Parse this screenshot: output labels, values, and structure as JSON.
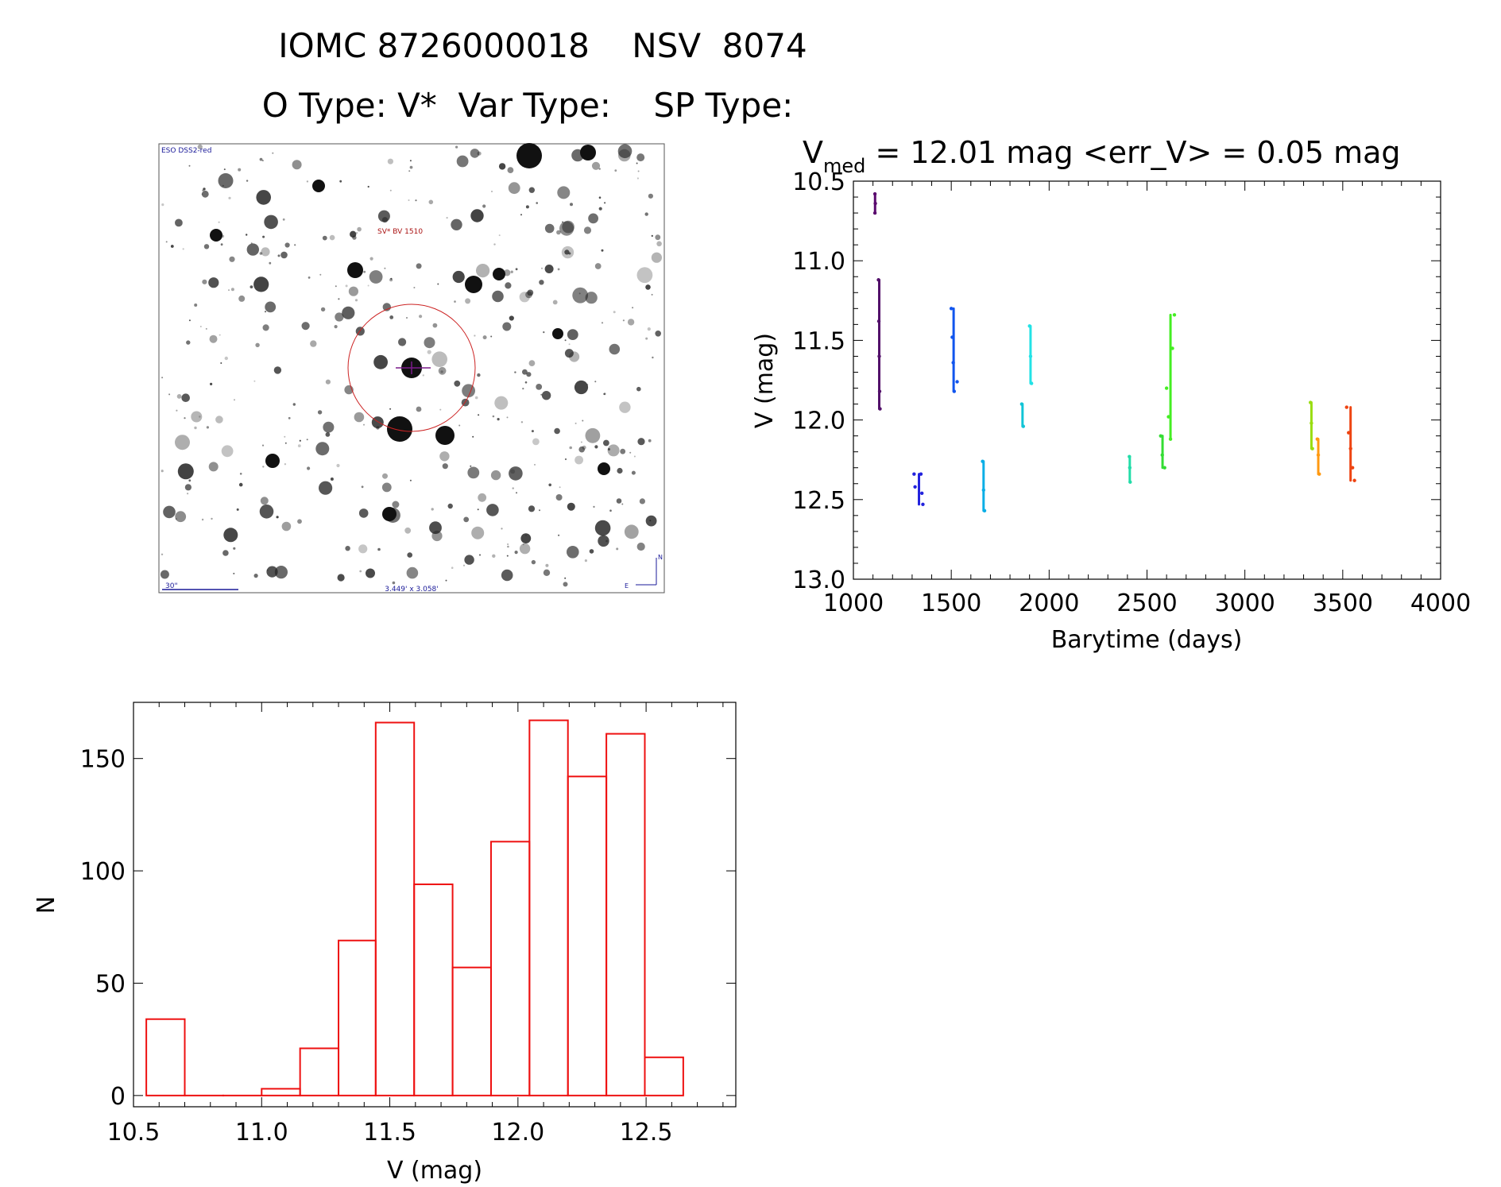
{
  "header": {
    "title": "IOMC 8726000018    NSV  8074",
    "subtitle": "O Type: V*  Var Type:    SP Type:"
  },
  "finder_image": {
    "survey_label": "ESO DSS2-red",
    "object_label": "SV* BV 1510",
    "scale_label": "30\"",
    "field_label": "3.449' x 3.058'",
    "north_label": "N",
    "east_label": "E"
  },
  "colors": {
    "histogram_bar": "#ee1111",
    "finder_circle": "#cc2222",
    "finder_cross": "#7a1a8a",
    "finder_text": "#1a1a99",
    "finder_object_text": "#aa1111"
  },
  "chart_data": [
    {
      "type": "scatter",
      "title_parts": [
        "V",
        "med",
        " = 12.01 mag <err_V> = 0.05 mag"
      ],
      "xlabel": "Barytime (days)",
      "ylabel": "V (mag)",
      "xlim": [
        1000,
        4000
      ],
      "ylim": [
        13.0,
        10.5
      ],
      "y_inverted": true,
      "xticks": [
        1000,
        1500,
        2000,
        2500,
        3000,
        3500,
        4000
      ],
      "yticks": [
        10.5,
        11.0,
        11.5,
        12.0,
        12.5,
        13.0
      ],
      "ytick_labels": [
        "10.5",
        "11.0",
        "11.5",
        "12.0",
        "12.5",
        "13.0"
      ],
      "grid": false,
      "color_scale": "time (rainbow, purple early to red late)",
      "groups": [
        {
          "color": "#5a0a6e",
          "x": [
            1110,
            1110,
            1112
          ],
          "y": [
            10.58,
            10.7,
            10.64
          ]
        },
        {
          "color": "#52106a",
          "x": [
            1128,
            1130,
            1132,
            1134,
            1136
          ],
          "y": [
            11.12,
            11.38,
            11.6,
            11.82,
            11.93
          ]
        },
        {
          "color": "#2222dd",
          "x": [
            1310,
            1315,
            1345,
            1350,
            1355
          ],
          "y": [
            12.34,
            12.42,
            12.34,
            12.46,
            12.53
          ]
        },
        {
          "color": "#1155ee",
          "x": [
            1500,
            1505,
            1510,
            1515,
            1530
          ],
          "y": [
            11.3,
            11.48,
            11.64,
            11.82,
            11.76
          ]
        },
        {
          "color": "#0aaee6",
          "x": [
            1660,
            1665,
            1670
          ],
          "y": [
            12.26,
            12.44,
            12.57
          ]
        },
        {
          "color": "#12c4d6",
          "x": [
            1860,
            1868
          ],
          "y": [
            11.9,
            12.04
          ]
        },
        {
          "color": "#22e2e6",
          "x": [
            1900,
            1905,
            1910
          ],
          "y": [
            11.41,
            11.6,
            11.77
          ]
        },
        {
          "color": "#22dca8",
          "x": [
            2410,
            2412,
            2414
          ],
          "y": [
            12.23,
            12.3,
            12.39
          ]
        },
        {
          "color": "#33dd33",
          "x": [
            2570,
            2578,
            2590
          ],
          "y": [
            12.1,
            12.22,
            12.3
          ]
        },
        {
          "color": "#44ee22",
          "x": [
            2600,
            2610,
            2620,
            2630,
            2640
          ],
          "y": [
            11.8,
            11.98,
            12.12,
            11.55,
            11.34
          ]
        },
        {
          "color": "#99dd11",
          "x": [
            3335,
            3340,
            3345
          ],
          "y": [
            11.89,
            12.02,
            12.18
          ]
        },
        {
          "color": "#ff9911",
          "x": [
            3370,
            3375,
            3380
          ],
          "y": [
            12.12,
            12.22,
            12.34
          ]
        },
        {
          "color": "#ee4411",
          "x": [
            3520,
            3530,
            3540,
            3550,
            3560
          ],
          "y": [
            11.92,
            12.08,
            12.18,
            12.3,
            12.38
          ]
        }
      ]
    },
    {
      "type": "bar",
      "subtype": "histogram",
      "xlabel": "V (mag)",
      "ylabel": "N",
      "xlim": [
        10.5,
        12.85
      ],
      "ylim": [
        -5,
        175
      ],
      "xticks": [
        10.5,
        11.0,
        11.5,
        12.0,
        12.5
      ],
      "xtick_labels": [
        "10.5",
        "11.0",
        "11.5",
        "12.0",
        "12.5"
      ],
      "yticks": [
        0,
        50,
        100,
        150
      ],
      "bin_edges": [
        10.55,
        10.7,
        10.85,
        11.0,
        11.15,
        11.3,
        11.445,
        11.595,
        11.745,
        11.895,
        12.045,
        12.195,
        12.345,
        12.495,
        12.645
      ],
      "values": [
        34,
        0,
        0,
        3,
        21,
        69,
        166,
        94,
        57,
        113,
        167,
        142,
        161,
        17
      ],
      "grid": false
    }
  ]
}
